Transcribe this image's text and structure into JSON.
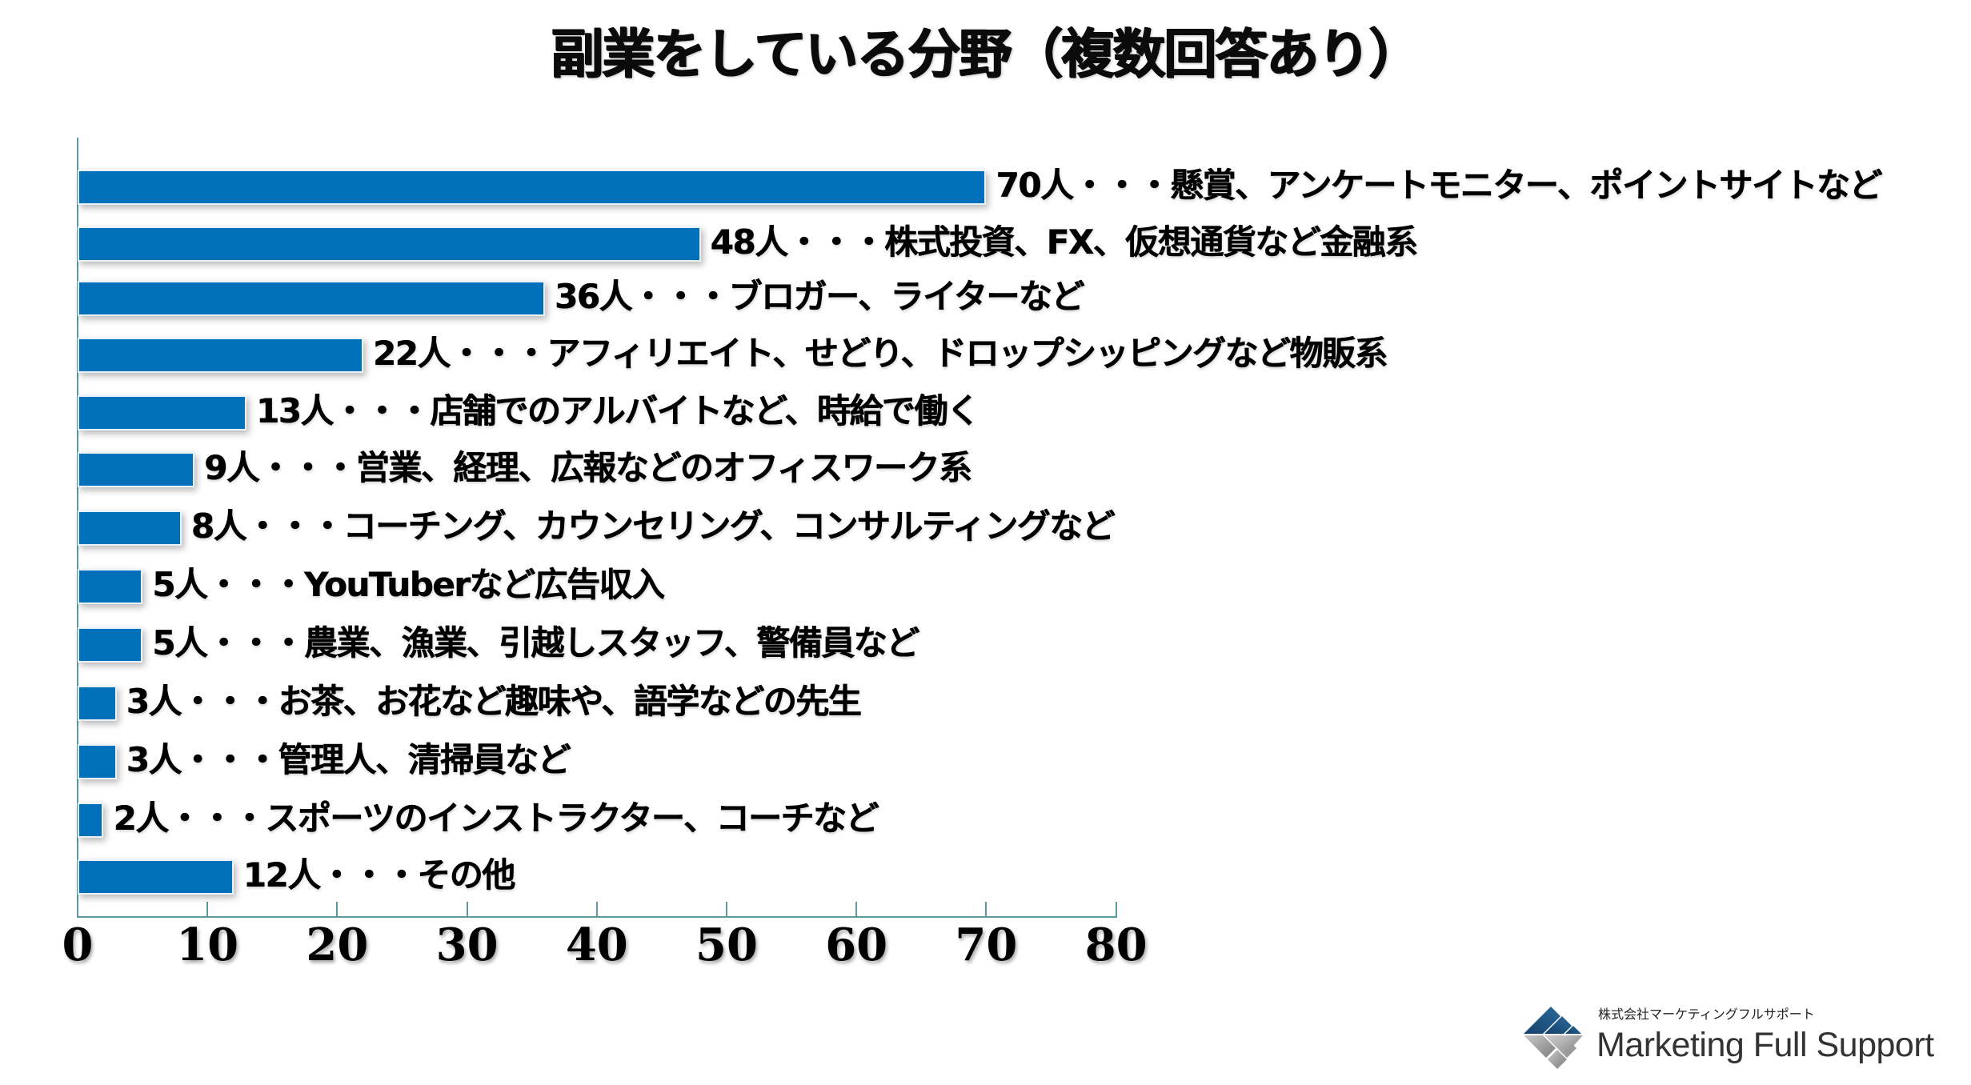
{
  "title": "副業をしている分野（複数回答あり）",
  "colors": {
    "bar": "#0070bb",
    "axis": "#5b9aa0",
    "text": "#000000",
    "logo_blue": "#1d4f7a",
    "logo_gray": "#9a9a9a"
  },
  "chart_data": {
    "type": "bar",
    "orientation": "horizontal",
    "title": "副業をしている分野（複数回答あり）",
    "xlabel": "",
    "ylabel": "",
    "xlim": [
      0,
      80
    ],
    "x_ticks": [
      0,
      10,
      20,
      30,
      40,
      50,
      60,
      70,
      80
    ],
    "grid": false,
    "legend": null,
    "unit": "人",
    "categories": [
      "懸賞、アンケートモニター、ポイントサイトなど",
      "株式投資、FX、仮想通貨など金融系",
      "ブロガー、ライターなど",
      "アフィリエイト、せどり、ドロップシッピングなど物販系",
      "店舗でのアルバイトなど、時給で働く",
      "営業、経理、広報などのオフィスワーク系",
      "コーチング、カウンセリング、コンサルティングなど",
      "YouTuberなど広告収入",
      "農業、漁業、引越しスタッフ、警備員など",
      "お茶、お花など趣味や、語学などの先生",
      "管理人、清掃員など",
      "スポーツのインストラクター、コーチなど",
      "その他"
    ],
    "values": [
      70,
      48,
      36,
      22,
      13,
      9,
      8,
      5,
      5,
      3,
      3,
      2,
      12
    ],
    "labels": [
      "70人・・・懸賞、アンケートモニター、ポイントサイトなど",
      "48人・・・株式投資、FX、仮想通貨など金融系",
      "36人・・・ブロガー、ライターなど",
      "22人・・・アフィリエイト、せどり、ドロップシッピングなど物販系",
      "13人・・・店舗でのアルバイトなど、時給で働く",
      "9人・・・営業、経理、広報などのオフィスワーク系",
      "8人・・・コーチング、カウンセリング、コンサルティングなど",
      "5人・・・YouTuberなど広告収入",
      "5人・・・農業、漁業、引越しスタッフ、警備員など",
      "3人・・・お茶、お花など趣味や、語学などの先生",
      "3人・・・管理人、清掃員など",
      "2人・・・スポーツのインストラクター、コーチなど",
      "12人・・・その他"
    ]
  },
  "logo": {
    "icon": "marketing-full-support-logo-mark",
    "company_jp": "株式会社マーケティングフルサポート",
    "company_en": "Marketing Full Support"
  }
}
